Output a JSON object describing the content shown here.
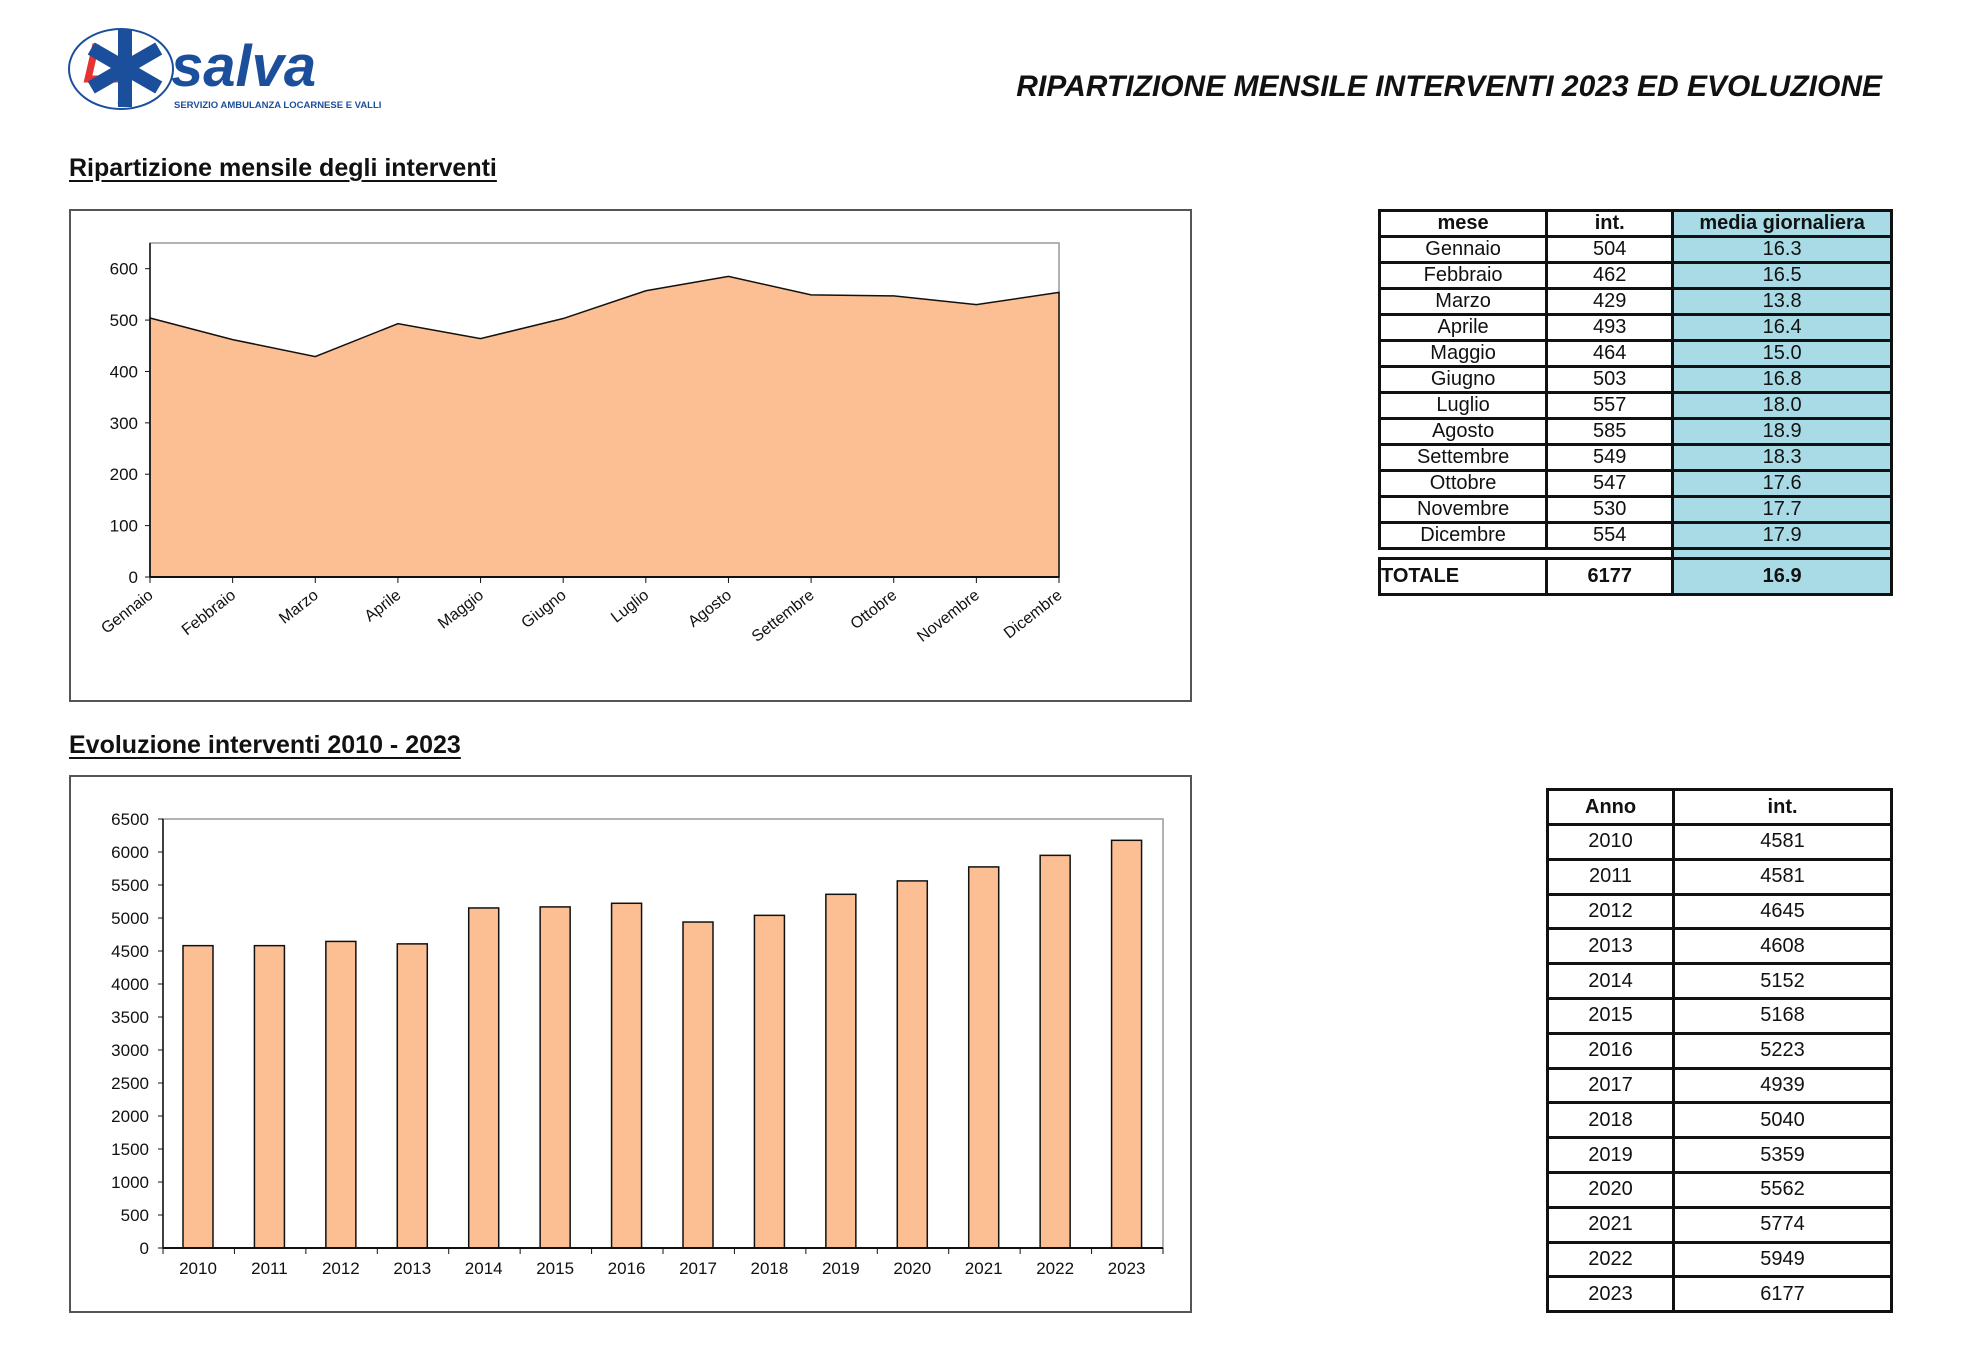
{
  "logo": {
    "text": "salva",
    "subtitle": "SERVIZIO AMBULANZA LOCARNESE E VALLI"
  },
  "title": "RIPARTIZIONE MENSILE INTERVENTI 2023 ED EVOLUZIONE",
  "section1": "Ripartizione mensile degli interventi",
  "section2": "Evoluzione interventi 2010 - 2023",
  "colors": {
    "fill": "#fbbf93",
    "table_blue": "#a8dbe6"
  },
  "monthly_table": {
    "headers": [
      "mese",
      "int.",
      "media giornaliera"
    ],
    "rows": [
      [
        "Gennaio",
        "504",
        "16.3"
      ],
      [
        "Febbraio",
        "462",
        "16.5"
      ],
      [
        "Marzo",
        "429",
        "13.8"
      ],
      [
        "Aprile",
        "493",
        "16.4"
      ],
      [
        "Maggio",
        "464",
        "15.0"
      ],
      [
        "Giugno",
        "503",
        "16.8"
      ],
      [
        "Luglio",
        "557",
        "18.0"
      ],
      [
        "Agosto",
        "585",
        "18.9"
      ],
      [
        "Settembre",
        "549",
        "18.3"
      ],
      [
        "Ottobre",
        "547",
        "17.6"
      ],
      [
        "Novembre",
        "530",
        "17.7"
      ],
      [
        "Dicembre",
        "554",
        "17.9"
      ]
    ],
    "total": [
      "TOTALE",
      "6177",
      "16.9"
    ]
  },
  "yearly_table": {
    "headers": [
      "Anno",
      "int."
    ],
    "rows": [
      [
        "2010",
        "4581"
      ],
      [
        "2011",
        "4581"
      ],
      [
        "2012",
        "4645"
      ],
      [
        "2013",
        "4608"
      ],
      [
        "2014",
        "5152"
      ],
      [
        "2015",
        "5168"
      ],
      [
        "2016",
        "5223"
      ],
      [
        "2017",
        "4939"
      ],
      [
        "2018",
        "5040"
      ],
      [
        "2019",
        "5359"
      ],
      [
        "2020",
        "5562"
      ],
      [
        "2021",
        "5774"
      ],
      [
        "2022",
        "5949"
      ],
      [
        "2023",
        "6177"
      ]
    ]
  },
  "chart_data": [
    {
      "type": "area",
      "title": "Ripartizione mensile degli interventi",
      "categories": [
        "Gennaio",
        "Febbraio",
        "Marzo",
        "Aprile",
        "Maggio",
        "Giugno",
        "Luglio",
        "Agosto",
        "Settembre",
        "Ottobre",
        "Novembre",
        "Dicembre"
      ],
      "values": [
        504,
        462,
        429,
        493,
        464,
        503,
        557,
        585,
        549,
        547,
        530,
        554
      ],
      "ylim": [
        0,
        650
      ],
      "yticks": [
        0,
        100,
        200,
        300,
        400,
        500,
        600
      ],
      "xlabel": "",
      "ylabel": ""
    },
    {
      "type": "bar",
      "title": "Evoluzione interventi 2010 - 2023",
      "categories": [
        "2010",
        "2011",
        "2012",
        "2013",
        "2014",
        "2015",
        "2016",
        "2017",
        "2018",
        "2019",
        "2020",
        "2021",
        "2022",
        "2023"
      ],
      "values": [
        4581,
        4581,
        4645,
        4608,
        5152,
        5168,
        5223,
        4939,
        5040,
        5359,
        5562,
        5774,
        5949,
        6177
      ],
      "ylim": [
        0,
        6500
      ],
      "yticks": [
        0,
        500,
        1000,
        1500,
        2000,
        2500,
        3000,
        3500,
        4000,
        4500,
        5000,
        5500,
        6000,
        6500
      ],
      "xlabel": "",
      "ylabel": ""
    }
  ]
}
